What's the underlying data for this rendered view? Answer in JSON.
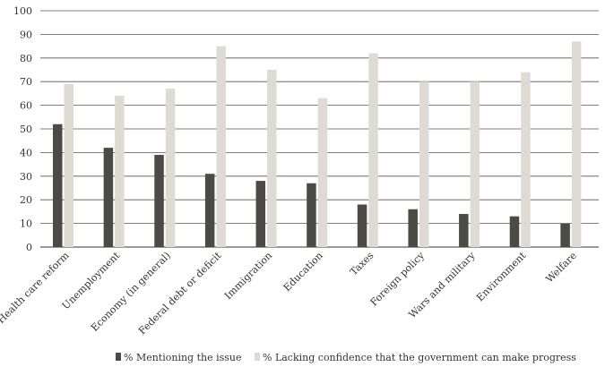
{
  "chart_data": {
    "type": "bar",
    "categories": [
      "Health care reform",
      "Unemployment",
      "Economy (in general)",
      "Federal debt or deficit",
      "Immigration",
      "Education",
      "Taxes",
      "Foreign policy",
      "Wars and military",
      "Environment",
      "Welfare"
    ],
    "series": [
      {
        "name": "% Mentioning the issue",
        "color": "#4a4b45",
        "values": [
          52,
          42,
          39,
          31,
          28,
          27,
          18,
          16,
          14,
          13,
          10
        ]
      },
      {
        "name": "% Lacking confidence that the government can make progress",
        "color": "#dedbd5",
        "values": [
          69,
          64,
          67,
          85,
          75,
          63,
          82,
          70,
          70,
          74,
          87
        ]
      }
    ],
    "ylim": [
      0,
      100
    ],
    "yticks": [
      0,
      10,
      20,
      30,
      40,
      50,
      60,
      70,
      80,
      90,
      100
    ],
    "grid": true,
    "legend_position": "bottom"
  }
}
